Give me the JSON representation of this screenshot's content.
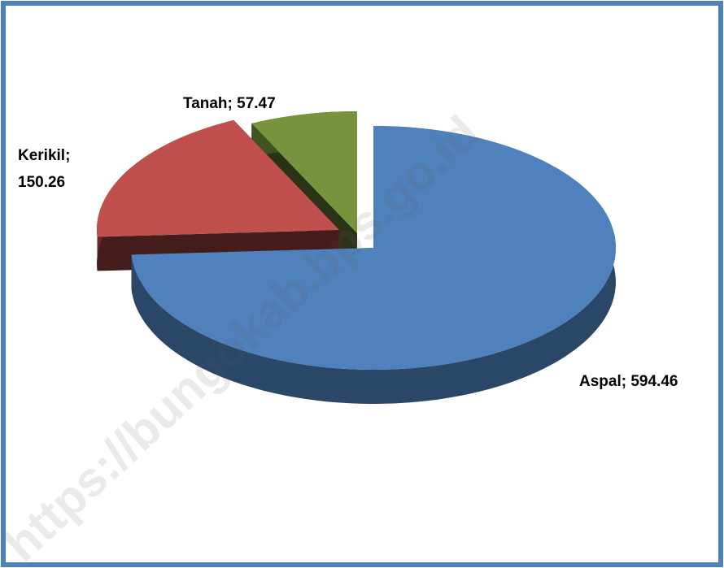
{
  "chart_data": {
    "type": "pie3d",
    "categories": [
      "Aspal",
      "Kerikil",
      "Tanah"
    ],
    "values": [
      594.46,
      150.26,
      57.47
    ],
    "value_labels": [
      "Aspal; 594.46",
      "Kerikil; 150.26",
      "Tanah; 57.47"
    ],
    "colors": [
      "#4f81bd",
      "#c0504d",
      "#77933c"
    ],
    "watermark": "https://bungokab.bps.go.id"
  }
}
